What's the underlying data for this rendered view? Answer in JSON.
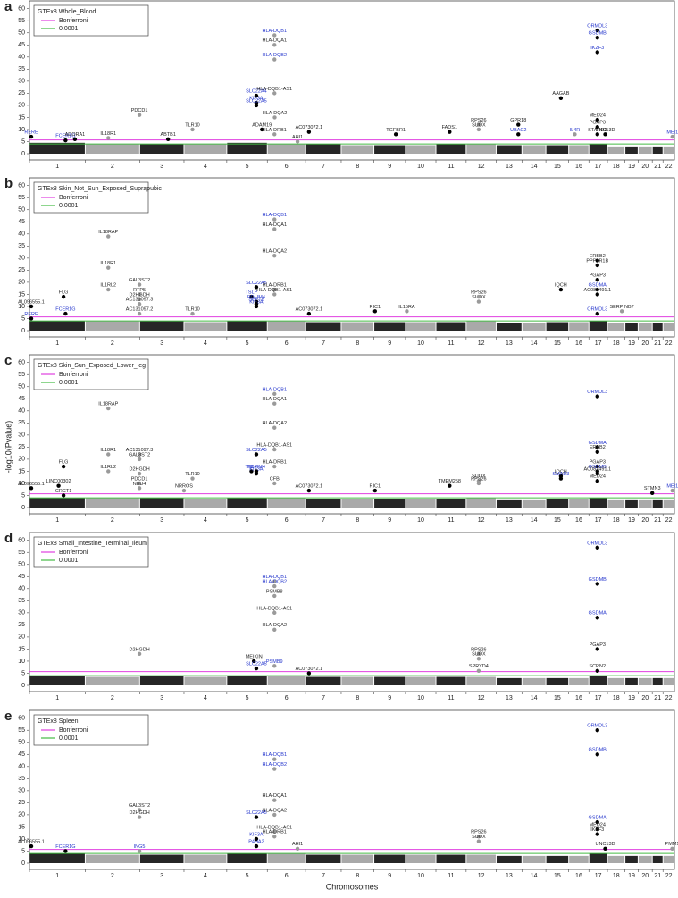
{
  "y_label": "-log10(Pvalue)",
  "x_label": "Chromosomes",
  "chromosomes": {
    "categories": [
      "1",
      "2",
      "3",
      "4",
      "5",
      "6",
      "7",
      "8",
      "9",
      "10",
      "11",
      "12",
      "13",
      "14",
      "15",
      "16",
      "17",
      "18",
      "19",
      "20",
      "21",
      "22"
    ],
    "bounds": [
      0,
      249,
      492,
      690,
      881,
      1062,
      1233,
      1392,
      1538,
      1679,
      1815,
      1950,
      2084,
      2199,
      2306,
      2408,
      2498,
      2581,
      2659,
      2718,
      2781,
      2829,
      2880
    ]
  },
  "xlim": [
    0,
    2880
  ],
  "colors": [
    "#000000",
    "#9a9a9a"
  ],
  "thresholds": [
    {
      "name": "Bonferroni",
      "color": "#e040e0",
      "value": 5.7
    },
    {
      "name": "0.0001",
      "color": "#44bb44",
      "value": 4
    }
  ],
  "chart_data": [
    {
      "type": "manhattan",
      "panel": "a",
      "title": "GTEx8 Whole_Blood",
      "ylim": [
        0,
        61
      ],
      "yticks": [
        0,
        5,
        10,
        15,
        20,
        25,
        30,
        35,
        40,
        45,
        50,
        55,
        60
      ],
      "background": [
        4.5,
        4,
        4,
        4,
        4.5,
        4,
        4,
        3.5,
        3.5,
        3.5,
        4,
        4,
        3.5,
        3.5,
        3.5,
        3.5,
        4,
        3,
        3,
        3,
        3,
        3
      ],
      "hits": {
        "x": [
          8,
          161,
          203,
          352,
          491,
          619,
          728,
          1013,
          1013,
          1013,
          1038,
          1094,
          1094,
          1094,
          1094,
          1095,
          1094,
          1248,
          1197,
          1636,
          1876,
          2006,
          2006,
          2183,
          2183,
          2373,
          2536,
          2536,
          2536,
          2536,
          2536,
          2536,
          2435,
          2571,
          2871
        ],
        "y": [
          7,
          5.5,
          6,
          6.5,
          16,
          6,
          10,
          21,
          24,
          20,
          10,
          49,
          45,
          39,
          25,
          15,
          8,
          9,
          5,
          8,
          9,
          12,
          10,
          12,
          8,
          23,
          51,
          48,
          42,
          14,
          11,
          8,
          8,
          8,
          7
        ],
        "labels": [
          "RERE",
          "FCER1G",
          "ADORA1",
          "IL18R1",
          "PDCD1",
          "ABTB1",
          "TLR10",
          "KIF3A",
          "SLC22A4",
          "SLC22A5",
          "ADAM19",
          "HLA-DQB1",
          "HLA-DQA1",
          "HLA-DQB2",
          "HLA-DQB1-AS1",
          "HLA-DQA2",
          "HLA-DRB1",
          "AC073072.1",
          "AHI1",
          "TGFBR1",
          "FADS1",
          "RPS26",
          "SUOX",
          "GPR18",
          "UBAC2",
          "AAGAB",
          "ORMDL3",
          "GSDMB",
          "IKZF3",
          "MED24",
          "PGAP3",
          "STARD3",
          "IL4R",
          "UNC13D",
          "MEI1"
        ],
        "label_colors": [
          "#2233cc",
          "#2233cc",
          "#222222",
          "#222222",
          "#222222",
          "#222222",
          "#222222",
          "#2233cc",
          "#2233cc",
          "#2233cc",
          "#222222",
          "#2233cc",
          "#222222",
          "#2233cc",
          "#222222",
          "#222222",
          "#222222",
          "#222222",
          "#222222",
          "#222222",
          "#222222",
          "#222222",
          "#222222",
          "#222222",
          "#2233cc",
          "#222222",
          "#2233cc",
          "#2233cc",
          "#2233cc",
          "#222222",
          "#222222",
          "#222222",
          "#2233cc",
          "#222222",
          "#2233cc"
        ]
      }
    },
    {
      "type": "manhattan",
      "panel": "b",
      "title": "GTEx8 Skin_Not_Sun_Exposed_Suprapubic",
      "ylim": [
        0,
        61
      ],
      "yticks": [
        0,
        5,
        10,
        15,
        20,
        25,
        30,
        35,
        40,
        45,
        50,
        55,
        60
      ],
      "background": [
        4,
        4,
        4,
        3.5,
        4,
        4,
        3.5,
        3.5,
        3.5,
        3.5,
        3.5,
        4,
        3,
        3,
        3.5,
        3.5,
        4,
        3,
        3,
        3,
        3,
        3
      ],
      "hits": {
        "x": [
          8,
          161,
          152,
          8,
          352,
          352,
          352,
          491,
          491,
          491,
          491,
          491,
          728,
          1013,
          991,
          1013,
          1013,
          1013,
          1094,
          1094,
          1094,
          1094,
          1094,
          1248,
          1543,
          1685,
          2006,
          2006,
          2536,
          2536,
          2536,
          2536,
          2536,
          2373,
          2536,
          2645
        ],
        "y": [
          5,
          7,
          14,
          10,
          39,
          26,
          17,
          19,
          15,
          13,
          11,
          7,
          7,
          18,
          14,
          12,
          11,
          10,
          46,
          42,
          31,
          17,
          15,
          7,
          8,
          8,
          12,
          14,
          29,
          27,
          21,
          17,
          15,
          17,
          7,
          8
        ],
        "labels": [
          "RERE",
          "FCER1G",
          "FLG",
          "AL096555.1",
          "IL18RAP",
          "IL18R1",
          "IL1RL2",
          "GAL3ST2",
          "RTP5",
          "D2HGDH",
          "AC131097.3",
          "AC131097.2",
          "TLR10",
          "SLC22A5",
          "TSLP",
          "PDLIM4",
          "SEPT8",
          "KIF3A",
          "HLA-DQB1",
          "HLA-DQA1",
          "HLA-DQA2",
          "HLA-DRB1",
          "HLA-DQB1-AS1",
          "AC073072.1",
          "RIC1",
          "IL15RA",
          "SUOX",
          "RPS26",
          "ERBB2",
          "PPP1R1B",
          "PGAP3",
          "GSDMA",
          "AC087491.1",
          "IQCH",
          "ORMDL3",
          "SERPINB7"
        ],
        "label_colors": [
          "#2233cc",
          "#2233cc",
          "#222222",
          "#222222",
          "#222222",
          "#222222",
          "#222222",
          "#222222",
          "#222222",
          "#222222",
          "#222222",
          "#222222",
          "#222222",
          "#2233cc",
          "#2233cc",
          "#2233cc",
          "#2233cc",
          "#2233cc",
          "#2233cc",
          "#222222",
          "#222222",
          "#222222",
          "#222222",
          "#222222",
          "#222222",
          "#222222",
          "#222222",
          "#222222",
          "#222222",
          "#222222",
          "#222222",
          "#2233cc",
          "#222222",
          "#222222",
          "#2233cc",
          "#222222"
        ]
      }
    },
    {
      "type": "manhattan",
      "panel": "c",
      "title": "GTEx8 Skin_Sun_Exposed_Lower_leg",
      "ylim": [
        0,
        61
      ],
      "yticks": [
        0,
        5,
        10,
        15,
        20,
        25,
        30,
        35,
        40,
        45,
        50,
        55,
        60
      ],
      "background": [
        4,
        4,
        4,
        3.5,
        4,
        4,
        3.5,
        3.5,
        3.5,
        3.5,
        3.5,
        4,
        3,
        3,
        3.5,
        3.5,
        4,
        3,
        3,
        3,
        3,
        3
      ],
      "hits": {
        "x": [
          152,
          352,
          352,
          352,
          491,
          491,
          491,
          491,
          491,
          8,
          130,
          152,
          728,
          690,
          1013,
          1013,
          991,
          1013,
          1094,
          1094,
          1094,
          1094,
          1094,
          1094,
          1248,
          1543,
          1876,
          2006,
          2006,
          2373,
          2373,
          2536,
          2536,
          2536,
          2536,
          2536,
          2536,
          2536,
          2781,
          2871
        ],
        "y": [
          17,
          41,
          22,
          15,
          22,
          20,
          14,
          10,
          8,
          8,
          9,
          5,
          12,
          7,
          22,
          15,
          15,
          14,
          47,
          43,
          33,
          24,
          17,
          10,
          7,
          7,
          9,
          11,
          10,
          13,
          12,
          46,
          25,
          23,
          17,
          15,
          14,
          11,
          6,
          7
        ],
        "labels": [
          "FLG",
          "IL18RAP",
          "IL18R1",
          "IL1RL2",
          "AC131097.3",
          "GAL3ST2",
          "D2HGDH",
          "PDCD1",
          "NEU4",
          "AL096555.1",
          "LINC00302",
          "CRCT1",
          "TLR10",
          "NRROS",
          "SLC22A5",
          "PDLIM4",
          "TSLP",
          "KIF3A",
          "HLA-DQB1",
          "HLA-DQA1",
          "HLA-DQA2",
          "HLA-DQB1-AS1",
          "HLA-DRB1",
          "CFB",
          "AC073072.1",
          "RIC1",
          "TMEM258",
          "SUOX",
          "RPS26",
          "IQCH",
          "SMAD3",
          "ORMDL3",
          "GSDMA",
          "ERBB2",
          "PGAP3",
          "GSDMB",
          "AC087491.1",
          "MED24",
          "STMN3",
          "MEI1"
        ],
        "label_colors": [
          "#222222",
          "#222222",
          "#222222",
          "#222222",
          "#222222",
          "#222222",
          "#222222",
          "#222222",
          "#222222",
          "#222222",
          "#222222",
          "#222222",
          "#222222",
          "#222222",
          "#2233cc",
          "#2233cc",
          "#2233cc",
          "#2233cc",
          "#2233cc",
          "#222222",
          "#222222",
          "#222222",
          "#222222",
          "#222222",
          "#222222",
          "#222222",
          "#222222",
          "#222222",
          "#222222",
          "#222222",
          "#2233cc",
          "#2233cc",
          "#2233cc",
          "#222222",
          "#222222",
          "#2233cc",
          "#222222",
          "#222222",
          "#222222",
          "#2233cc"
        ]
      }
    },
    {
      "type": "manhattan",
      "panel": "d",
      "title": "GTEx8 Small_Intestine_Terminal_Ileum",
      "ylim": [
        0,
        61
      ],
      "yticks": [
        0,
        5,
        10,
        15,
        20,
        25,
        30,
        35,
        40,
        45,
        50,
        55,
        60
      ],
      "background": [
        4,
        3.5,
        4,
        3.5,
        4,
        4,
        3.5,
        3.5,
        3.5,
        3.5,
        3.5,
        3.5,
        3,
        3,
        3,
        3,
        4,
        3,
        3,
        3,
        3,
        3
      ],
      "hits": {
        "x": [
          491,
          1002,
          1094,
          1094,
          1094,
          1094,
          1094,
          1094,
          1013,
          1248,
          2006,
          2006,
          2006,
          2536,
          2536,
          2536,
          2536,
          2536
        ],
        "y": [
          13,
          10,
          43,
          41,
          37,
          30,
          23,
          8,
          7,
          5,
          13,
          11,
          6,
          57,
          42,
          28,
          15,
          6
        ],
        "labels": [
          "D2HGDH",
          "MEIKIN",
          "HLA-DQB1",
          "HLA-DQB2",
          "PSMB8",
          "HLA-DQB1-AS1",
          "HLA-DQA2",
          "PSMB9",
          "SLC22A5",
          "AC073072.1",
          "RPS26",
          "SUOX",
          "SPRYD4",
          "ORMDL3",
          "GSDMB",
          "GSDMA",
          "PGAP3",
          "SCRN2"
        ],
        "label_colors": [
          "#222222",
          "#222222",
          "#2233cc",
          "#2233cc",
          "#222222",
          "#222222",
          "#222222",
          "#2233cc",
          "#2233cc",
          "#222222",
          "#222222",
          "#222222",
          "#222222",
          "#2233cc",
          "#2233cc",
          "#2233cc",
          "#222222",
          "#222222"
        ]
      }
    },
    {
      "type": "manhattan",
      "panel": "e",
      "title": "GTEx8 Spleen",
      "ylim": [
        0,
        61
      ],
      "yticks": [
        0,
        5,
        10,
        15,
        20,
        25,
        30,
        35,
        40,
        45,
        50,
        55,
        60
      ],
      "background": [
        4,
        3.5,
        3.5,
        3.5,
        4,
        4,
        3.5,
        3.5,
        3.5,
        3.5,
        3.5,
        3.5,
        3,
        3,
        3,
        3,
        4,
        3,
        3,
        3,
        3,
        3
      ],
      "hits": {
        "x": [
          8,
          161,
          491,
          491,
          491,
          1013,
          1013,
          1013,
          1094,
          1094,
          1094,
          1094,
          1094,
          1094,
          1197,
          2006,
          2006,
          2536,
          2536,
          2536,
          2536,
          2536,
          2571,
          2870
        ],
        "y": [
          7,
          5,
          22,
          19,
          5,
          19,
          10,
          7,
          43,
          39,
          26,
          20,
          13,
          11,
          6,
          11,
          9,
          55,
          45,
          17,
          14,
          12,
          6,
          6
        ],
        "labels": [
          "AL096555.1",
          "FCER1G",
          "GAL3ST2",
          "D2HGDH",
          "ING5",
          "SLC22A5",
          "KIF3A",
          "P4HA2",
          "HLA-DQB1",
          "HLA-DQB2",
          "HLA-DQA1",
          "HLA-DQA2",
          "HLA-DQB1-AS1",
          "HLA-DRB1",
          "AHI1",
          "RPS26",
          "SUOX",
          "ORMDL3",
          "GSDMB",
          "GSDMA",
          "MED24",
          "IKZF3",
          "UNC13D",
          "PMM1"
        ],
        "label_colors": [
          "#222222",
          "#2233cc",
          "#222222",
          "#222222",
          "#2233cc",
          "#2233cc",
          "#2233cc",
          "#2233cc",
          "#2233cc",
          "#2233cc",
          "#222222",
          "#222222",
          "#222222",
          "#222222",
          "#222222",
          "#222222",
          "#222222",
          "#2233cc",
          "#2233cc",
          "#2233cc",
          "#222222",
          "#222222",
          "#222222",
          "#222222"
        ]
      }
    }
  ]
}
